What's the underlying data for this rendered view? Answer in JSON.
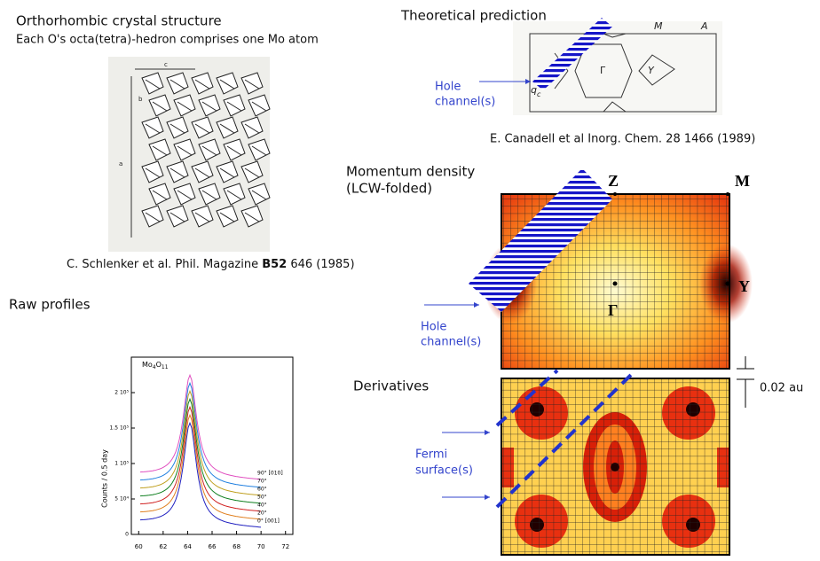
{
  "crystal": {
    "title": "Orthorhombic crystal structure",
    "subtitle": "Each O's octa(tetra)-hedron comprises one Mo atom",
    "axis_c": "c",
    "axis_b": "b",
    "axis_a": "a",
    "citation_pre": "C. Schlenker et al. Phil. Magazine ",
    "citation_bold": "B52",
    "citation_post": " 646 (1985)"
  },
  "theory": {
    "title": "Theoretical prediction",
    "hole_line1": "Hole",
    "hole_line2": "channel(s)",
    "label_m": "M",
    "label_a": "A",
    "label_gamma": "Γ",
    "label_y": "Y",
    "label_q": "q",
    "label_q_sub": "c",
    "citation": "E. Canadell et al Inorg. Chem. 28 1466 (1989)"
  },
  "momentum": {
    "title_line1": "Momentum density",
    "title_line2": "(LCW-folded)",
    "label_z": "Z",
    "label_m": "M",
    "label_y": "Y",
    "label_gamma": "Γ",
    "hole_line1": "Hole",
    "hole_line2": "channel(s)"
  },
  "derivatives": {
    "title": "Derivatives",
    "scale": "0.02 au",
    "fermi_line1": "Fermi",
    "fermi_line2": "surface(s)"
  },
  "raw": {
    "title": "Raw profiles",
    "plot_label": "Mo",
    "plot_label_sub1": "4",
    "plot_label_mid": "O",
    "plot_label_sub2": "11",
    "ylabel": "Counts / 0.5 day",
    "xticks": [
      "60",
      "62",
      "64",
      "66",
      "68",
      "70",
      "72"
    ],
    "yticks": [
      "0",
      "5 10⁴",
      "1 10⁵",
      "1.5 10⁵",
      "2 10⁵"
    ],
    "legend": [
      "90° [010]",
      "70°",
      "60°",
      "50°",
      "40°",
      "20°",
      "0° [001]"
    ]
  }
}
